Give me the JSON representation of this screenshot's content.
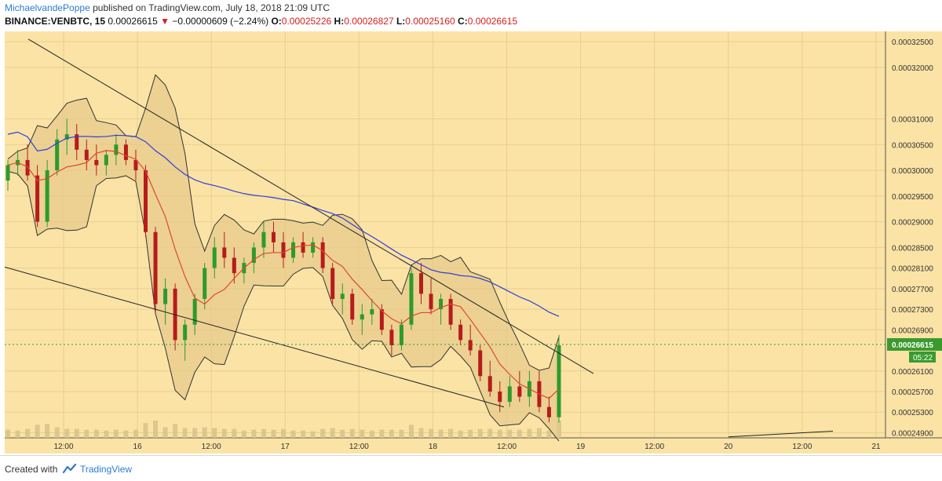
{
  "header": {
    "author": "MichaelvandePoppe",
    "published_text": "published on TradingView.com, July 18, 2018 21:09 UTC",
    "symbol": "BINANCE:VENBTC, 15",
    "last": "0.00026615",
    "change_arrow": "▼",
    "change": "−0.00000609 (−2.24%)",
    "open_label": "O:",
    "open": "0.00025226",
    "high_label": "H:",
    "high": "0.00026827",
    "low_label": "L:",
    "low": "0.00025160",
    "close_label": "C:",
    "close": "0.00026615"
  },
  "footer": {
    "created_with": "Created with",
    "brand": "TradingView"
  },
  "colors": {
    "background": "#fbe3a6",
    "up_candle": "#2e9a2e",
    "down_candle": "#b61c1c",
    "sma_fast": "#e0472f",
    "sma_slow": "#2f3fd6",
    "bollinger": "#333333",
    "trendline": "#222222",
    "volume_bar": "#d4c08a",
    "price_marker": "#3a9a2e",
    "accent": "#2e7bcf"
  },
  "chart_data": {
    "type": "candlestick",
    "price_axis": {
      "ticks": [
        "0.00032500",
        "0.00032000",
        "0.00031000",
        "0.00030500",
        "0.00030000",
        "0.00029500",
        "0.00029000",
        "0.00028500",
        "0.00028100",
        "0.00027700",
        "0.00027300",
        "0.00026900",
        "0.00026100",
        "0.00025700",
        "0.00025300",
        "0.00024900"
      ],
      "current_price_label": "0.00026615",
      "countdown_label": "05:22"
    },
    "time_axis": {
      "ticks": [
        "12:00",
        "16",
        "12:00",
        "17",
        "12:00",
        "18",
        "12:00",
        "19",
        "12:00",
        "20",
        "12:00",
        "21"
      ]
    },
    "ohlc": [
      {
        "o": 0.000298,
        "h": 0.000302,
        "l": 0.000296,
        "c": 0.000301
      },
      {
        "o": 0.000301,
        "h": 0.000304,
        "l": 0.000299,
        "c": 0.000302
      },
      {
        "o": 0.000302,
        "h": 0.000305,
        "l": 0.000298,
        "c": 0.000299
      },
      {
        "o": 0.000299,
        "h": 0.000301,
        "l": 0.000289,
        "c": 0.00029
      },
      {
        "o": 0.00029,
        "h": 0.000302,
        "l": 0.000289,
        "c": 0.0003
      },
      {
        "o": 0.0003,
        "h": 0.000308,
        "l": 0.000299,
        "c": 0.000306
      },
      {
        "o": 0.000306,
        "h": 0.00031,
        "l": 0.000303,
        "c": 0.000307
      },
      {
        "o": 0.000307,
        "h": 0.000309,
        "l": 0.000302,
        "c": 0.000304
      },
      {
        "o": 0.000304,
        "h": 0.000306,
        "l": 0.0003,
        "c": 0.000302
      },
      {
        "o": 0.000302,
        "h": 0.000305,
        "l": 0.000299,
        "c": 0.000301
      },
      {
        "o": 0.000301,
        "h": 0.000304,
        "l": 0.000299,
        "c": 0.000303
      },
      {
        "o": 0.000303,
        "h": 0.000307,
        "l": 0.000301,
        "c": 0.000305
      },
      {
        "o": 0.000305,
        "h": 0.000306,
        "l": 0.000301,
        "c": 0.000302
      },
      {
        "o": 0.000302,
        "h": 0.000304,
        "l": 0.000298,
        "c": 0.0003
      },
      {
        "o": 0.0003,
        "h": 0.000301,
        "l": 0.000287,
        "c": 0.000288
      },
      {
        "o": 0.000288,
        "h": 0.000289,
        "l": 0.000272,
        "c": 0.000274
      },
      {
        "o": 0.000274,
        "h": 0.000279,
        "l": 0.00027,
        "c": 0.000277
      },
      {
        "o": 0.000277,
        "h": 0.000278,
        "l": 0.000265,
        "c": 0.000267
      },
      {
        "o": 0.000267,
        "h": 0.000271,
        "l": 0.000263,
        "c": 0.00027
      },
      {
        "o": 0.00027,
        "h": 0.000276,
        "l": 0.000268,
        "c": 0.000275
      },
      {
        "o": 0.000275,
        "h": 0.000282,
        "l": 0.000273,
        "c": 0.000281
      },
      {
        "o": 0.000281,
        "h": 0.000287,
        "l": 0.000279,
        "c": 0.000285
      },
      {
        "o": 0.000285,
        "h": 0.000288,
        "l": 0.000281,
        "c": 0.000283
      },
      {
        "o": 0.000283,
        "h": 0.000285,
        "l": 0.000278,
        "c": 0.00028
      },
      {
        "o": 0.00028,
        "h": 0.000283,
        "l": 0.000278,
        "c": 0.000282
      },
      {
        "o": 0.000282,
        "h": 0.000286,
        "l": 0.00028,
        "c": 0.000285
      },
      {
        "o": 0.000285,
        "h": 0.00029,
        "l": 0.000283,
        "c": 0.000288
      },
      {
        "o": 0.000288,
        "h": 0.00029,
        "l": 0.000284,
        "c": 0.000286
      },
      {
        "o": 0.000286,
        "h": 0.000288,
        "l": 0.000281,
        "c": 0.000283
      },
      {
        "o": 0.000283,
        "h": 0.000287,
        "l": 0.000282,
        "c": 0.000286
      },
      {
        "o": 0.000286,
        "h": 0.000288,
        "l": 0.000283,
        "c": 0.000284
      },
      {
        "o": 0.000284,
        "h": 0.000287,
        "l": 0.000283,
        "c": 0.000286
      },
      {
        "o": 0.000286,
        "h": 0.000287,
        "l": 0.00028,
        "c": 0.000281
      },
      {
        "o": 0.000281,
        "h": 0.000282,
        "l": 0.000274,
        "c": 0.000275
      },
      {
        "o": 0.000275,
        "h": 0.000278,
        "l": 0.000272,
        "c": 0.000276
      },
      {
        "o": 0.000276,
        "h": 0.000277,
        "l": 0.00027,
        "c": 0.000271
      },
      {
        "o": 0.000271,
        "h": 0.000274,
        "l": 0.000268,
        "c": 0.000272
      },
      {
        "o": 0.000272,
        "h": 0.000275,
        "l": 0.00027,
        "c": 0.000273
      },
      {
        "o": 0.000273,
        "h": 0.000274,
        "l": 0.000268,
        "c": 0.000269
      },
      {
        "o": 0.000269,
        "h": 0.00027,
        "l": 0.000264,
        "c": 0.000266
      },
      {
        "o": 0.000266,
        "h": 0.000271,
        "l": 0.000265,
        "c": 0.00027
      },
      {
        "o": 0.00027,
        "h": 0.000281,
        "l": 0.000269,
        "c": 0.00028
      },
      {
        "o": 0.00028,
        "h": 0.000282,
        "l": 0.000274,
        "c": 0.000276
      },
      {
        "o": 0.000276,
        "h": 0.000279,
        "l": 0.000272,
        "c": 0.000273
      },
      {
        "o": 0.000273,
        "h": 0.000276,
        "l": 0.00027,
        "c": 0.000275
      },
      {
        "o": 0.000275,
        "h": 0.000276,
        "l": 0.000269,
        "c": 0.00027
      },
      {
        "o": 0.00027,
        "h": 0.000271,
        "l": 0.000266,
        "c": 0.000267
      },
      {
        "o": 0.000267,
        "h": 0.00027,
        "l": 0.000264,
        "c": 0.000265
      },
      {
        "o": 0.000265,
        "h": 0.000266,
        "l": 0.000259,
        "c": 0.00026
      },
      {
        "o": 0.00026,
        "h": 0.000263,
        "l": 0.000256,
        "c": 0.000257
      },
      {
        "o": 0.000257,
        "h": 0.000259,
        "l": 0.000253,
        "c": 0.000255
      },
      {
        "o": 0.000255,
        "h": 0.00026,
        "l": 0.000254,
        "c": 0.000258
      },
      {
        "o": 0.000258,
        "h": 0.000261,
        "l": 0.000255,
        "c": 0.000256
      },
      {
        "o": 0.000256,
        "h": 0.000261,
        "l": 0.000254,
        "c": 0.000259
      },
      {
        "o": 0.000259,
        "h": 0.000261,
        "l": 0.000253,
        "c": 0.000254
      },
      {
        "o": 0.000254,
        "h": 0.000256,
        "l": 0.000251,
        "c": 0.000252
      },
      {
        "o": 0.000252,
        "h": 0.000268,
        "l": 0.000251,
        "c": 0.000266
      }
    ]
  }
}
